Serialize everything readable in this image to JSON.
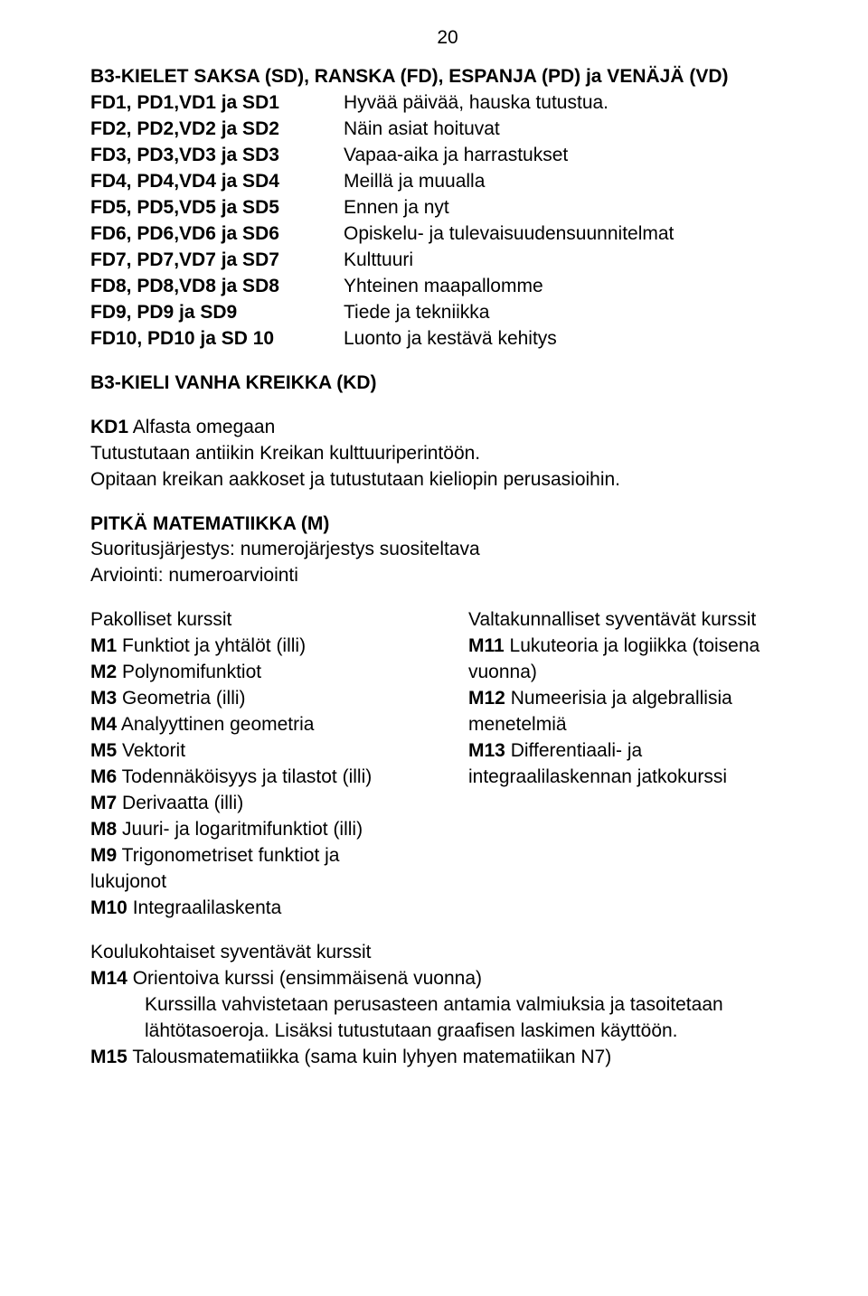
{
  "pageNumber": "20",
  "section1": {
    "title": "B3-KIELET SAKSA (SD), RANSKA (FD), ESPANJA (PD) ja VENÄJÄ (VD)",
    "rows": [
      {
        "code": "FD1, PD1,VD1 ja SD1",
        "desc": "Hyvää päivää, hauska tutustua."
      },
      {
        "code": "FD2, PD2,VD2 ja SD2",
        "desc": "Näin asiat hoituvat"
      },
      {
        "code": "FD3, PD3,VD3 ja SD3",
        "desc": "Vapaa-aika ja harrastukset"
      },
      {
        "code": "FD4, PD4,VD4 ja SD4",
        "desc": "Meillä ja muualla"
      },
      {
        "code": "FD5, PD5,VD5 ja SD5",
        "desc": "Ennen ja nyt"
      },
      {
        "code": "FD6, PD6,VD6 ja SD6",
        "desc": "Opiskelu- ja tulevaisuudensuunnitelmat"
      },
      {
        "code": "FD7, PD7,VD7 ja SD7",
        "desc": "Kulttuuri"
      },
      {
        "code": "FD8, PD8,VD8 ja SD8",
        "desc": "Yhteinen maapallomme"
      },
      {
        "code": "FD9, PD9 ja SD9",
        "desc": "Tiede ja tekniikka"
      },
      {
        "code": "FD10, PD10 ja SD 10",
        "desc": "Luonto ja kestävä kehitys"
      }
    ]
  },
  "section2": {
    "title": "B3-KIELI VANHA KREIKKA (KD)",
    "kd1_label": "KD1",
    "kd1_suffix": " Alfasta omegaan",
    "body1": "Tutustutaan antiikin Kreikan kulttuuriperintöön.",
    "body2": "Opitaan kreikan aakkoset ja tutustutaan kieliopin perusasioihin."
  },
  "section3": {
    "title": "PITKÄ MATEMATIIKKA (M)",
    "l1": "Suoritusjärjestys: numerojärjestys suositeltava",
    "l2": "Arviointi: numeroarviointi"
  },
  "colA": {
    "head": "Pakolliset kurssit",
    "m1_c": "M1",
    "m1_t": "  Funktiot ja yhtälöt (illi)",
    "m2_c": "M2",
    "m2_t": "  Polynomifunktiot",
    "m3_c": "M3",
    "m3_t": "  Geometria (illi)",
    "m4_c": "M4",
    "m4_t": "  Analyyttinen geometria",
    "m5_c": "M5",
    "m5_t": "  Vektorit",
    "m6_c": "M6",
    "m6_t": "  Todennäköisyys ja tilastot (illi)",
    "m7_c": "M7",
    "m7_t": "  Derivaatta (illi)",
    "m8_c": "M8",
    "m8_t": "  Juuri- ja logaritmifunktiot (illi)",
    "m9_c": "M9",
    "m9_t": "  Trigonometriset funktiot ja",
    "m9_cont": "lukujonot",
    "m10_c": "M10",
    "m10_t": " Integraalilaskenta"
  },
  "colB": {
    "head": "Valtakunnalliset syventävät kurssit",
    "m11_c": "M11",
    "m11_t": " Lukuteoria ja logiikka (toisena",
    "m11_cont": "vuonna)",
    "m12_c": "M12",
    "m12_t": "  Numeerisia ja algebrallisia",
    "m12_cont": "menetelmiä",
    "m13_c": "M13",
    "m13_t": "  Differentiaali- ja",
    "m13_cont": "integraalilaskennan jatkokurssi"
  },
  "footer": {
    "head": "Koulukohtaiset syventävät kurssit",
    "m14_c": "M14",
    "m14_t": " Orientoiva kurssi (ensimmäisenä vuonna)",
    "m14_b1": "Kurssilla vahvistetaan perusasteen antamia valmiuksia ja tasoitetaan",
    "m14_b2": "lähtötasoeroja. Lisäksi tutustutaan graafisen laskimen käyttöön.",
    "m15_c": "M15",
    "m15_t": " Talousmatematiikka (sama kuin lyhyen matematiikan N7)"
  }
}
